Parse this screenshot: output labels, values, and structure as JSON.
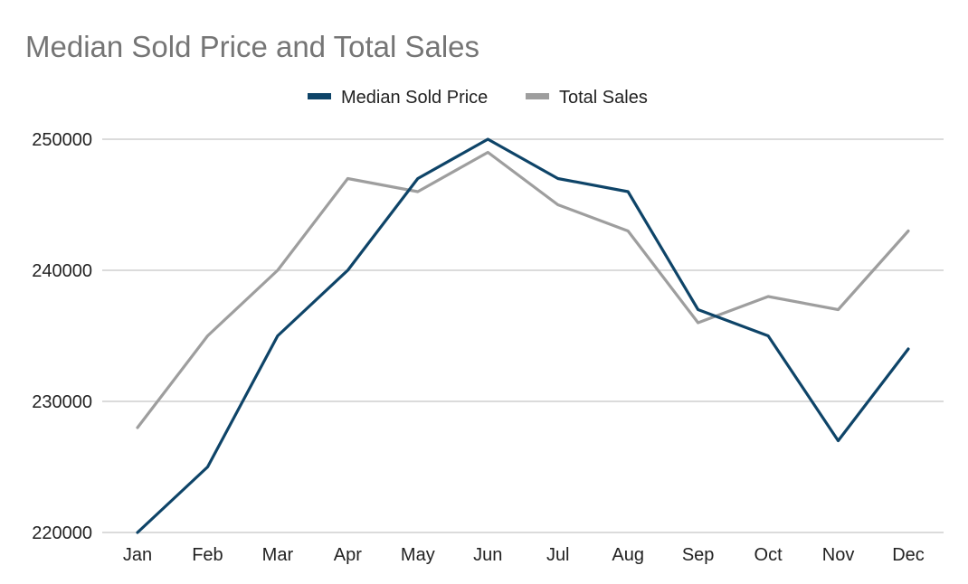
{
  "colors": {
    "background": "#ffffff",
    "title": "#757575",
    "text": "#222222",
    "grid": "#cfcfcf",
    "median_sold_price": "#0e4468",
    "total_sales": "#9e9e9e"
  },
  "chart_data": {
    "type": "line",
    "title": "Median Sold Price and Total Sales",
    "xlabel": "",
    "ylabel": "",
    "categories": [
      "Jan",
      "Feb",
      "Mar",
      "Apr",
      "May",
      "Jun",
      "Jul",
      "Aug",
      "Sep",
      "Oct",
      "Nov",
      "Dec"
    ],
    "ylim": [
      220000,
      250000
    ],
    "yticks": [
      220000,
      230000,
      240000,
      250000
    ],
    "ytick_labels": [
      "220000",
      "230000",
      "240000",
      "250000"
    ],
    "grid": true,
    "legend_position": "top-center",
    "series": [
      {
        "name": "Median Sold Price",
        "color": "#0e4468",
        "values": [
          220000,
          225000,
          235000,
          240000,
          247000,
          250000,
          247000,
          246000,
          237000,
          235000,
          227000,
          234000
        ]
      },
      {
        "name": "Total Sales",
        "color": "#9e9e9e",
        "values": [
          228000,
          235000,
          240000,
          247000,
          246000,
          249000,
          245000,
          243000,
          236000,
          238000,
          237000,
          243000
        ]
      }
    ]
  }
}
